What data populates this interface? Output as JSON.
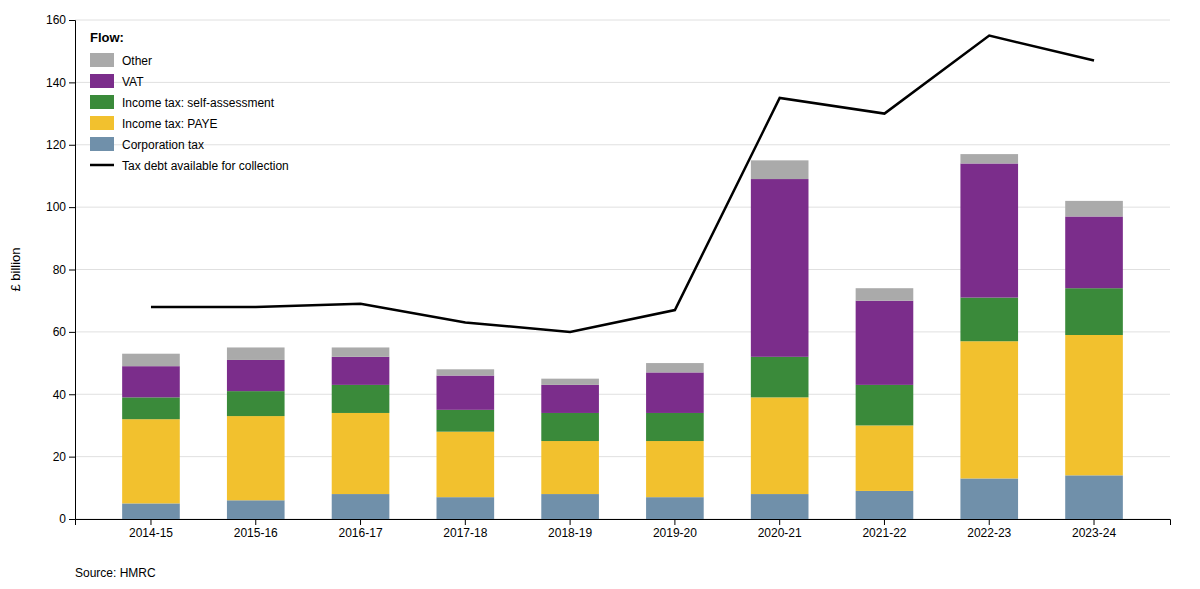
{
  "chart_data": {
    "type": "bar",
    "stacked": true,
    "categories": [
      "2014-15",
      "2015-16",
      "2016-17",
      "2017-18",
      "2018-19",
      "2019-20",
      "2020-21",
      "2021-22",
      "2022-23",
      "2023-24"
    ],
    "series": [
      {
        "name": "Corporation tax",
        "type": "bar",
        "color": "#7090aa",
        "values": [
          5,
          6,
          8,
          7,
          8,
          7,
          8,
          9,
          13,
          14
        ]
      },
      {
        "name": "Income tax: PAYE",
        "type": "bar",
        "color": "#f2c12e",
        "values": [
          27,
          27,
          26,
          21,
          17,
          18,
          31,
          21,
          44,
          45
        ]
      },
      {
        "name": "Income tax: self-assessment",
        "type": "bar",
        "color": "#3a8a3a",
        "values": [
          7,
          8,
          9,
          7,
          9,
          9,
          13,
          13,
          14,
          15
        ]
      },
      {
        "name": "VAT",
        "type": "bar",
        "color": "#7b2d8b",
        "values": [
          10,
          10,
          9,
          11,
          9,
          13,
          57,
          27,
          43,
          23
        ]
      },
      {
        "name": "Other",
        "type": "bar",
        "color": "#aaaaaa",
        "values": [
          4,
          4,
          3,
          2,
          2,
          3,
          6,
          4,
          3,
          5
        ]
      },
      {
        "name": "Tax debt available for collection",
        "type": "line",
        "color": "#000000",
        "values": [
          68,
          68,
          69,
          63,
          60,
          67,
          135,
          130,
          155,
          147
        ]
      }
    ],
    "y_label": "£ billion",
    "ylim": [
      0,
      160
    ],
    "yticks": [
      0,
      20,
      40,
      60,
      80,
      100,
      120,
      140,
      160
    ],
    "grid": true,
    "legend": "upper left",
    "legend_title": "Flow:",
    "annotations": [
      "Source: HMRC"
    ]
  }
}
